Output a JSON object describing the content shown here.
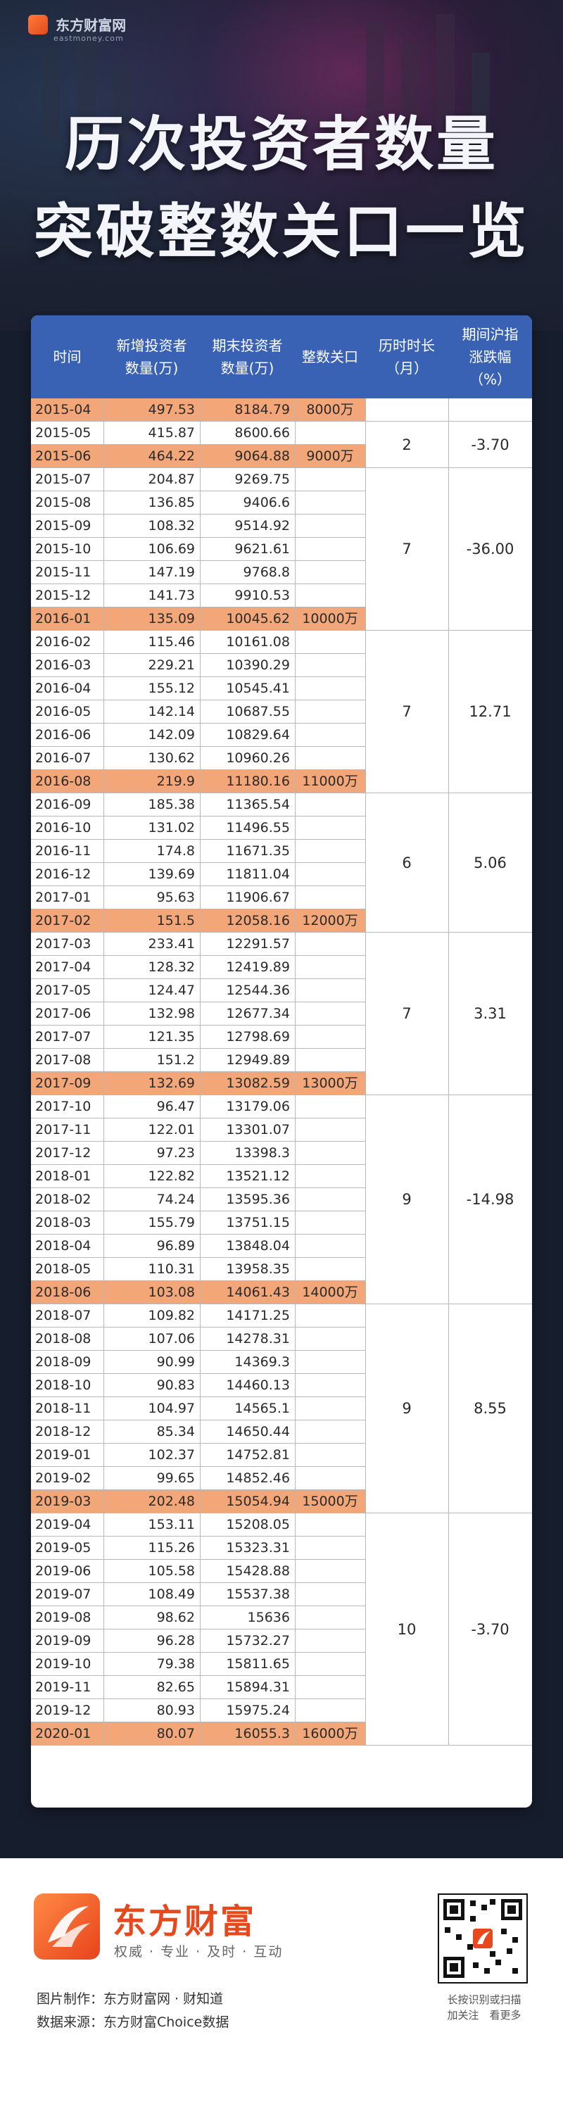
{
  "header": {
    "brand": "东方财富网",
    "brand_url": "eastmoney.com",
    "title_line1": "历次投资者数量",
    "title_line2": "突破整数关口一览"
  },
  "table": {
    "headers": {
      "time": "时间",
      "new_line1": "新增投资者",
      "new_line2": "数量(万)",
      "end_line1": "期末投资者",
      "end_line2": "数量(万)",
      "level": "整数关口",
      "dur_line1": "历时时长",
      "dur_line2": "（月）",
      "chg_line1": "期间沪指",
      "chg_line2": "涨跌幅",
      "chg_line3": "（%）"
    },
    "rows": [
      {
        "time": "2015-04",
        "new": "497.53",
        "end": "8184.79",
        "level": "8000万",
        "hl": true
      },
      {
        "time": "2015-05",
        "new": "415.87",
        "end": "8600.66",
        "level": "",
        "hl": false
      },
      {
        "time": "2015-06",
        "new": "464.22",
        "end": "9064.88",
        "level": "9000万",
        "hl": true
      },
      {
        "time": "2015-07",
        "new": "204.87",
        "end": "9269.75",
        "level": "",
        "hl": false
      },
      {
        "time": "2015-08",
        "new": "136.85",
        "end": "9406.6",
        "level": "",
        "hl": false
      },
      {
        "time": "2015-09",
        "new": "108.32",
        "end": "9514.92",
        "level": "",
        "hl": false
      },
      {
        "time": "2015-10",
        "new": "106.69",
        "end": "9621.61",
        "level": "",
        "hl": false
      },
      {
        "time": "2015-11",
        "new": "147.19",
        "end": "9768.8",
        "level": "",
        "hl": false
      },
      {
        "time": "2015-12",
        "new": "141.73",
        "end": "9910.53",
        "level": "",
        "hl": false
      },
      {
        "time": "2016-01",
        "new": "135.09",
        "end": "10045.62",
        "level": "10000万",
        "hl": true
      },
      {
        "time": "2016-02",
        "new": "115.46",
        "end": "10161.08",
        "level": "",
        "hl": false
      },
      {
        "time": "2016-03",
        "new": "229.21",
        "end": "10390.29",
        "level": "",
        "hl": false
      },
      {
        "time": "2016-04",
        "new": "155.12",
        "end": "10545.41",
        "level": "",
        "hl": false
      },
      {
        "time": "2016-05",
        "new": "142.14",
        "end": "10687.55",
        "level": "",
        "hl": false
      },
      {
        "time": "2016-06",
        "new": "142.09",
        "end": "10829.64",
        "level": "",
        "hl": false
      },
      {
        "time": "2016-07",
        "new": "130.62",
        "end": "10960.26",
        "level": "",
        "hl": false
      },
      {
        "time": "2016-08",
        "new": "219.9",
        "end": "11180.16",
        "level": "11000万",
        "hl": true
      },
      {
        "time": "2016-09",
        "new": "185.38",
        "end": "11365.54",
        "level": "",
        "hl": false
      },
      {
        "time": "2016-10",
        "new": "131.02",
        "end": "11496.55",
        "level": "",
        "hl": false
      },
      {
        "time": "2016-11",
        "new": "174.8",
        "end": "11671.35",
        "level": "",
        "hl": false
      },
      {
        "time": "2016-12",
        "new": "139.69",
        "end": "11811.04",
        "level": "",
        "hl": false
      },
      {
        "time": "2017-01",
        "new": "95.63",
        "end": "11906.67",
        "level": "",
        "hl": false
      },
      {
        "time": "2017-02",
        "new": "151.5",
        "end": "12058.16",
        "level": "12000万",
        "hl": true
      },
      {
        "time": "2017-03",
        "new": "233.41",
        "end": "12291.57",
        "level": "",
        "hl": false
      },
      {
        "time": "2017-04",
        "new": "128.32",
        "end": "12419.89",
        "level": "",
        "hl": false
      },
      {
        "time": "2017-05",
        "new": "124.47",
        "end": "12544.36",
        "level": "",
        "hl": false
      },
      {
        "time": "2017-06",
        "new": "132.98",
        "end": "12677.34",
        "level": "",
        "hl": false
      },
      {
        "time": "2017-07",
        "new": "121.35",
        "end": "12798.69",
        "level": "",
        "hl": false
      },
      {
        "time": "2017-08",
        "new": "151.2",
        "end": "12949.89",
        "level": "",
        "hl": false
      },
      {
        "time": "2017-09",
        "new": "132.69",
        "end": "13082.59",
        "level": "13000万",
        "hl": true
      },
      {
        "time": "2017-10",
        "new": "96.47",
        "end": "13179.06",
        "level": "",
        "hl": false
      },
      {
        "time": "2017-11",
        "new": "122.01",
        "end": "13301.07",
        "level": "",
        "hl": false
      },
      {
        "time": "2017-12",
        "new": "97.23",
        "end": "13398.3",
        "level": "",
        "hl": false
      },
      {
        "time": "2018-01",
        "new": "122.82",
        "end": "13521.12",
        "level": "",
        "hl": false
      },
      {
        "time": "2018-02",
        "new": "74.24",
        "end": "13595.36",
        "level": "",
        "hl": false
      },
      {
        "time": "2018-03",
        "new": "155.79",
        "end": "13751.15",
        "level": "",
        "hl": false
      },
      {
        "time": "2018-04",
        "new": "96.89",
        "end": "13848.04",
        "level": "",
        "hl": false
      },
      {
        "time": "2018-05",
        "new": "110.31",
        "end": "13958.35",
        "level": "",
        "hl": false
      },
      {
        "time": "2018-06",
        "new": "103.08",
        "end": "14061.43",
        "level": "14000万",
        "hl": true
      },
      {
        "time": "2018-07",
        "new": "109.82",
        "end": "14171.25",
        "level": "",
        "hl": false
      },
      {
        "time": "2018-08",
        "new": "107.06",
        "end": "14278.31",
        "level": "",
        "hl": false
      },
      {
        "time": "2018-09",
        "new": "90.99",
        "end": "14369.3",
        "level": "",
        "hl": false
      },
      {
        "time": "2018-10",
        "new": "90.83",
        "end": "14460.13",
        "level": "",
        "hl": false
      },
      {
        "time": "2018-11",
        "new": "104.97",
        "end": "14565.1",
        "level": "",
        "hl": false
      },
      {
        "time": "2018-12",
        "new": "85.34",
        "end": "14650.44",
        "level": "",
        "hl": false
      },
      {
        "time": "2019-01",
        "new": "102.37",
        "end": "14752.81",
        "level": "",
        "hl": false
      },
      {
        "time": "2019-02",
        "new": "99.65",
        "end": "14852.46",
        "level": "",
        "hl": false
      },
      {
        "time": "2019-03",
        "new": "202.48",
        "end": "15054.94",
        "level": "15000万",
        "hl": true
      },
      {
        "time": "2019-04",
        "new": "153.11",
        "end": "15208.05",
        "level": "",
        "hl": false
      },
      {
        "time": "2019-05",
        "new": "115.26",
        "end": "15323.31",
        "level": "",
        "hl": false
      },
      {
        "time": "2019-06",
        "new": "105.58",
        "end": "15428.88",
        "level": "",
        "hl": false
      },
      {
        "time": "2019-07",
        "new": "108.49",
        "end": "15537.38",
        "level": "",
        "hl": false
      },
      {
        "time": "2019-08",
        "new": "98.62",
        "end": "15636",
        "level": "",
        "hl": false
      },
      {
        "time": "2019-09",
        "new": "96.28",
        "end": "15732.27",
        "level": "",
        "hl": false
      },
      {
        "time": "2019-10",
        "new": "79.38",
        "end": "15811.65",
        "level": "",
        "hl": false
      },
      {
        "time": "2019-11",
        "new": "82.65",
        "end": "15894.31",
        "level": "",
        "hl": false
      },
      {
        "time": "2019-12",
        "new": "80.93",
        "end": "15975.24",
        "level": "",
        "hl": false
      },
      {
        "time": "2020-01",
        "new": "80.07",
        "end": "16055.3",
        "level": "16000万",
        "hl": true
      }
    ],
    "groups": [
      {
        "first": 0,
        "last": 0,
        "dur": "",
        "chg": ""
      },
      {
        "first": 1,
        "last": 2,
        "dur": "2",
        "chg": "-3.70"
      },
      {
        "first": 3,
        "last": 9,
        "dur": "7",
        "chg": "-36.00"
      },
      {
        "first": 10,
        "last": 16,
        "dur": "7",
        "chg": "12.71"
      },
      {
        "first": 17,
        "last": 22,
        "dur": "6",
        "chg": "5.06"
      },
      {
        "first": 23,
        "last": 29,
        "dur": "7",
        "chg": "3.31"
      },
      {
        "first": 30,
        "last": 38,
        "dur": "9",
        "chg": "-14.98"
      },
      {
        "first": 39,
        "last": 47,
        "dur": "9",
        "chg": "8.55"
      },
      {
        "first": 48,
        "last": 57,
        "dur": "10",
        "chg": "-3.70"
      }
    ],
    "colors": {
      "header": "#3a62b4",
      "highlight": "#f3a779"
    }
  },
  "footer": {
    "brand_name": "东方财富",
    "slogan": "权威 · 专业 · 及时 · 互动",
    "credit_made": "图片制作：东方财富网 · 财知道",
    "credit_source": "数据来源：东方财富Choice数据",
    "qr_text1": "长按识别或扫描",
    "qr_text2": "加关注　看更多"
  }
}
